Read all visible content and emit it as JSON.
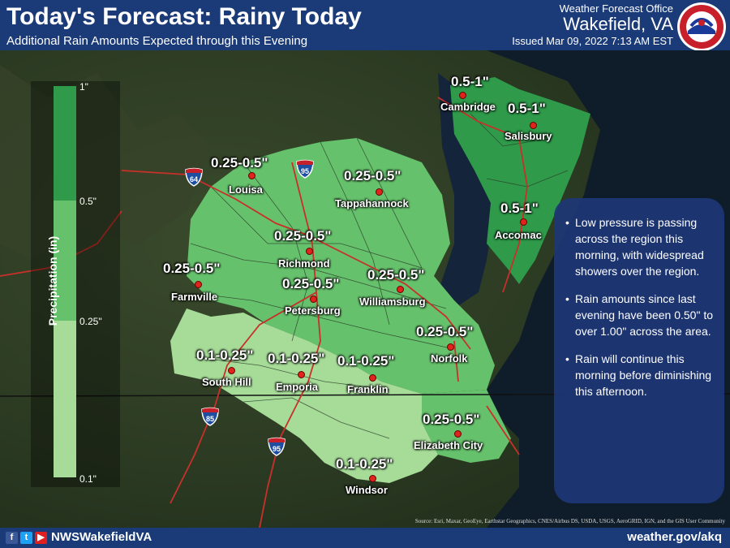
{
  "header": {
    "title": "Today's Forecast: Rainy Today",
    "subtitle": "Additional Rain Amounts Expected through this Evening",
    "office_name": "Weather Forecast Office",
    "office_city": "Wakefield, VA",
    "issued": "Issued Mar 09, 2022 7:13 AM EST",
    "logo_text": "NATIONAL WEATHER SERVICE"
  },
  "legend": {
    "axis_label": "Precipitation (in)",
    "ticks": [
      "1\"",
      "0.5\"",
      "0.25\"",
      "0.1\""
    ],
    "colors": [
      "#2e9a4a",
      "#66c16c",
      "#a6dc98"
    ]
  },
  "map": {
    "locations": [
      {
        "name": "Cambridge",
        "amount": "0.5-1\""
      },
      {
        "name": "Salisbury",
        "amount": "0.5-1\""
      },
      {
        "name": "Accomac",
        "amount": "0.5-1\""
      },
      {
        "name": "Louisa",
        "amount": "0.25-0.5\""
      },
      {
        "name": "Tappahannock",
        "amount": "0.25-0.5\""
      },
      {
        "name": "Richmond",
        "amount": "0.25-0.5\""
      },
      {
        "name": "Farmville",
        "amount": "0.25-0.5\""
      },
      {
        "name": "Petersburg",
        "amount": "0.25-0.5\""
      },
      {
        "name": "Williamsburg",
        "amount": "0.25-0.5\""
      },
      {
        "name": "Norfolk",
        "amount": "0.25-0.5\""
      },
      {
        "name": "South Hill",
        "amount": "0.1-0.25\""
      },
      {
        "name": "Emporia",
        "amount": "0.1-0.25\""
      },
      {
        "name": "Franklin",
        "amount": "0.1-0.25\""
      },
      {
        "name": "Elizabeth City",
        "amount": "0.25-0.5\""
      },
      {
        "name": "Windsor",
        "amount": "0.1-0.25\""
      }
    ],
    "interstates": [
      "64",
      "95",
      "85",
      "95"
    ],
    "source": "Source: Esri, Maxar, GeoEye, Earthstar Geographics, CNES/Airbus DS, USDA, USGS, AeroGRID, IGN, and the GIS User Community"
  },
  "infobox": {
    "bullets": [
      "Low pressure is passing across the region this morning, with widespread showers over the region.",
      "Rain amounts since last evening have been 0.50\" to over 1.00\" across the area.",
      "Rain will continue this morning before diminishing this afternoon."
    ]
  },
  "footer": {
    "handle": "NWSWakefieldVA",
    "website": "weather.gov/akq"
  }
}
